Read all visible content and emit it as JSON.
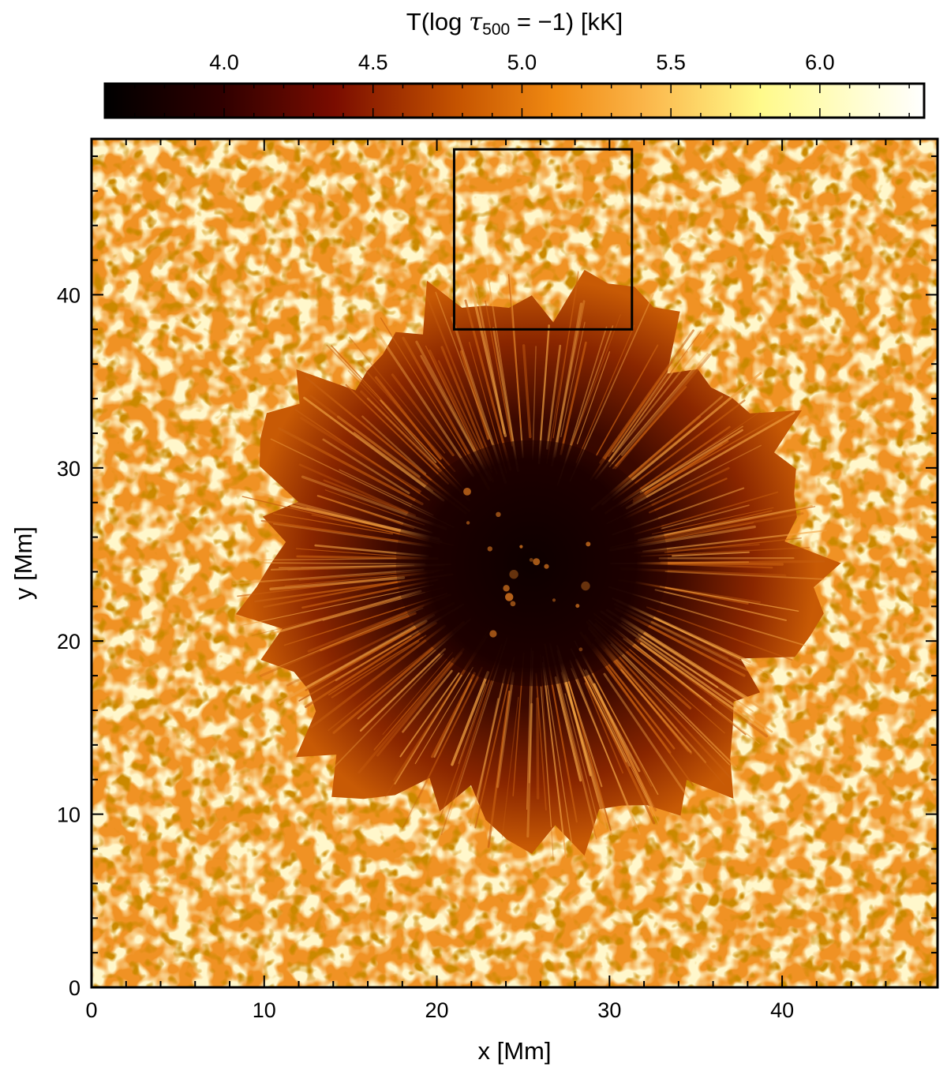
{
  "chart_data": {
    "type": "heatmap",
    "title": "",
    "xlabel": "x [Mm]",
    "ylabel": "y [Mm]",
    "xlim": [
      0,
      49
    ],
    "ylim": [
      0,
      49
    ],
    "x_ticks": [
      0,
      10,
      20,
      30,
      40
    ],
    "y_ticks": [
      0,
      10,
      20,
      30,
      40
    ],
    "grid": false,
    "colorbar": {
      "label_prefix": "T(log ",
      "label_tau": "τ",
      "label_sub": "500",
      "label_suffix": " = −1) [kK]",
      "placement": "top",
      "range": [
        3.6,
        6.35
      ],
      "ticks": [
        4.0,
        4.5,
        5.0,
        5.5,
        6.0
      ],
      "tick_labels": [
        "4.0",
        "4.5",
        "5.0",
        "5.5",
        "6.0"
      ],
      "colormap_stops": [
        "#000000",
        "#2e0000",
        "#7a0c00",
        "#c55300",
        "#f08a12",
        "#fbb64a",
        "#fffa8a",
        "#ffffff"
      ]
    },
    "features": {
      "quiet_sun_temperature": 5.05,
      "sunspot_center": [
        25.5,
        24.5
      ],
      "umbra_radius": 7.5,
      "umbra_temperature": 3.8,
      "penumbra_radius": 16.5,
      "penumbra_temperature": 4.6
    },
    "highlight_box": {
      "x": [
        21,
        31.3
      ],
      "y": [
        38,
        48.4
      ]
    }
  }
}
